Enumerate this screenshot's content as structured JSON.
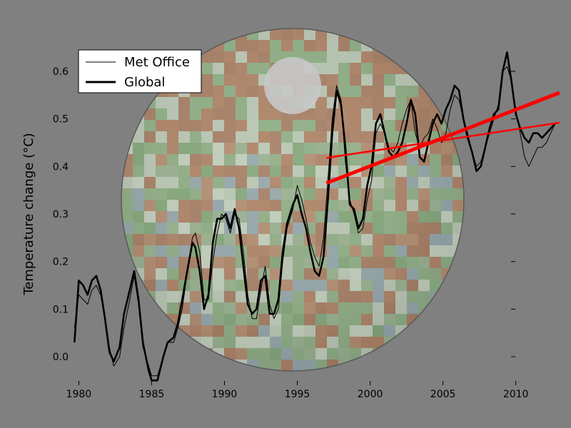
{
  "chart_data": {
    "type": "line",
    "title": "",
    "xlabel": "",
    "ylabel": "Temperature change (°C)",
    "xlim": [
      1979,
      2013.3
    ],
    "ylim": [
      -0.06,
      0.66
    ],
    "xticks": [
      1980,
      1985,
      1990,
      1995,
      2000,
      2005,
      2010
    ],
    "yticks": [
      0.0,
      0.1,
      0.2,
      0.3,
      0.4,
      0.5,
      0.6
    ],
    "grid": false,
    "legend": {
      "position": "top-left",
      "entries": [
        "Met Office",
        "Global"
      ]
    },
    "background_image": "orthographic-globe-temperature-anomaly-map",
    "colors": {
      "background": "#808080",
      "series": "#000000",
      "trend": "#ff0000"
    },
    "series": [
      {
        "name": "Met Office",
        "line_width": "thin",
        "x": [
          1979.7,
          1980.0,
          1980.3,
          1980.6,
          1980.9,
          1981.2,
          1981.5,
          1981.8,
          1982.1,
          1982.4,
          1982.8,
          1983.1,
          1983.5,
          1983.8,
          1984.1,
          1984.4,
          1984.8,
          1985.0,
          1985.4,
          1985.8,
          1986.1,
          1986.5,
          1986.8,
          1987.1,
          1987.5,
          1987.8,
          1988.0,
          1988.3,
          1988.6,
          1988.9,
          1989.2,
          1989.5,
          1989.8,
          1990.1,
          1990.4,
          1990.7,
          1991.0,
          1991.3,
          1991.6,
          1991.9,
          1992.2,
          1992.5,
          1992.8,
          1993.1,
          1993.4,
          1993.7,
          1994.0,
          1994.3,
          1994.7,
          1995.0,
          1995.3,
          1995.6,
          1995.9,
          1996.2,
          1996.5,
          1996.8,
          1997.1,
          1997.4,
          1997.7,
          1998.0,
          1998.3,
          1998.6,
          1998.9,
          1999.2,
          1999.5,
          1999.8,
          2000.1,
          2000.4,
          2000.7,
          2001.0,
          2001.3,
          2001.6,
          2001.9,
          2002.2,
          2002.5,
          2002.8,
          2003.1,
          2003.4,
          2003.7,
          2004.0,
          2004.3,
          2004.6,
          2004.9,
          2005.2,
          2005.5,
          2005.8,
          2006.1,
          2006.4,
          2006.7,
          2007.0,
          2007.3,
          2007.6,
          2007.9,
          2008.2,
          2008.5,
          2008.8,
          2009.1,
          2009.4,
          2009.7,
          2010.0,
          2010.3,
          2010.6,
          2010.9,
          2011.2,
          2011.5,
          2011.8,
          2012.1,
          2012.4,
          2012.7
        ],
        "values": [
          0.06,
          0.13,
          0.12,
          0.11,
          0.14,
          0.15,
          0.13,
          0.08,
          0.02,
          -0.02,
          0.0,
          0.06,
          0.12,
          0.17,
          0.11,
          0.02,
          -0.02,
          -0.04,
          -0.04,
          0.0,
          0.03,
          0.03,
          0.06,
          0.1,
          0.19,
          0.25,
          0.26,
          0.22,
          0.12,
          0.12,
          0.2,
          0.26,
          0.3,
          0.29,
          0.26,
          0.3,
          0.29,
          0.22,
          0.13,
          0.08,
          0.08,
          0.14,
          0.19,
          0.11,
          0.08,
          0.1,
          0.2,
          0.27,
          0.31,
          0.36,
          0.33,
          0.29,
          0.24,
          0.21,
          0.19,
          0.25,
          0.37,
          0.5,
          0.57,
          0.54,
          0.41,
          0.33,
          0.3,
          0.26,
          0.27,
          0.33,
          0.37,
          0.47,
          0.49,
          0.47,
          0.44,
          0.43,
          0.45,
          0.49,
          0.52,
          0.54,
          0.47,
          0.44,
          0.46,
          0.47,
          0.5,
          0.48,
          0.45,
          0.47,
          0.52,
          0.55,
          0.54,
          0.5,
          0.47,
          0.43,
          0.4,
          0.41,
          0.44,
          0.47,
          0.5,
          0.53,
          0.6,
          0.61,
          0.58,
          0.52,
          0.47,
          0.42,
          0.4,
          0.42,
          0.44,
          0.44,
          0.45,
          0.47,
          0.49
        ]
      },
      {
        "name": "Global",
        "line_width": "thick",
        "x": [
          1979.7,
          1980.0,
          1980.3,
          1980.6,
          1980.9,
          1981.2,
          1981.5,
          1981.8,
          1982.1,
          1982.4,
          1982.8,
          1983.1,
          1983.5,
          1983.8,
          1984.1,
          1984.4,
          1984.8,
          1985.0,
          1985.4,
          1985.8,
          1986.1,
          1986.5,
          1986.8,
          1987.1,
          1987.5,
          1987.8,
          1988.0,
          1988.3,
          1988.6,
          1988.9,
          1989.2,
          1989.5,
          1989.8,
          1990.1,
          1990.4,
          1990.7,
          1991.0,
          1991.3,
          1991.6,
          1991.9,
          1992.2,
          1992.5,
          1992.8,
          1993.1,
          1993.4,
          1993.7,
          1994.0,
          1994.3,
          1994.7,
          1995.0,
          1995.3,
          1995.6,
          1995.9,
          1996.2,
          1996.5,
          1996.8,
          1997.1,
          1997.4,
          1997.7,
          1998.0,
          1998.3,
          1998.6,
          1998.9,
          1999.2,
          1999.5,
          1999.8,
          2000.1,
          2000.4,
          2000.7,
          2001.0,
          2001.3,
          2001.6,
          2001.9,
          2002.2,
          2002.5,
          2002.8,
          2003.1,
          2003.4,
          2003.7,
          2004.0,
          2004.3,
          2004.6,
          2004.9,
          2005.2,
          2005.5,
          2005.8,
          2006.1,
          2006.4,
          2006.7,
          2007.0,
          2007.3,
          2007.6,
          2007.9,
          2008.2,
          2008.5,
          2008.8,
          2009.1,
          2009.4,
          2009.7,
          2010.0,
          2010.3,
          2010.6,
          2010.9,
          2011.2,
          2011.5,
          2011.8,
          2012.1,
          2012.4,
          2012.7
        ],
        "values": [
          0.03,
          0.16,
          0.15,
          0.13,
          0.16,
          0.17,
          0.14,
          0.08,
          0.01,
          -0.01,
          0.02,
          0.09,
          0.14,
          0.18,
          0.12,
          0.03,
          -0.03,
          -0.05,
          -0.05,
          0.0,
          0.03,
          0.04,
          0.07,
          0.12,
          0.19,
          0.24,
          0.23,
          0.18,
          0.1,
          0.13,
          0.24,
          0.29,
          0.29,
          0.3,
          0.27,
          0.31,
          0.27,
          0.19,
          0.11,
          0.09,
          0.1,
          0.16,
          0.17,
          0.09,
          0.09,
          0.12,
          0.22,
          0.28,
          0.32,
          0.34,
          0.3,
          0.27,
          0.22,
          0.18,
          0.17,
          0.21,
          0.33,
          0.47,
          0.56,
          0.53,
          0.44,
          0.32,
          0.31,
          0.27,
          0.29,
          0.36,
          0.4,
          0.49,
          0.51,
          0.47,
          0.43,
          0.42,
          0.43,
          0.45,
          0.49,
          0.54,
          0.51,
          0.42,
          0.41,
          0.45,
          0.49,
          0.51,
          0.49,
          0.52,
          0.54,
          0.57,
          0.56,
          0.5,
          0.46,
          0.43,
          0.39,
          0.4,
          0.44,
          0.48,
          0.51,
          0.52,
          0.6,
          0.64,
          0.58,
          0.51,
          0.48,
          0.46,
          0.45,
          0.47,
          0.47,
          0.46,
          0.47,
          0.48,
          0.49
        ]
      }
    ],
    "trend_lines": [
      {
        "line_width": "thick",
        "x": [
          1997.0,
          2013.0
        ],
        "values": [
          0.365,
          0.555
        ]
      },
      {
        "line_width": "thin",
        "x": [
          1997.0,
          2013.0
        ],
        "values": [
          0.418,
          0.492
        ]
      }
    ]
  }
}
